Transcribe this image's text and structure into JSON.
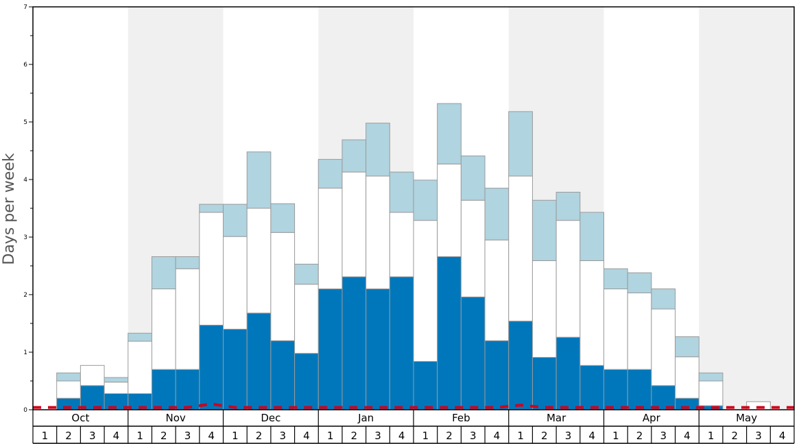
{
  "chart_data": {
    "type": "bar",
    "stacked": true,
    "ylabel": "Days per week",
    "ylim": [
      0,
      7
    ],
    "y_ticks": [
      "0",
      "1",
      "2",
      "3",
      "4",
      "5",
      "6",
      "7"
    ],
    "months": [
      "Oct",
      "Nov",
      "Dec",
      "Jan",
      "Feb",
      "Mar",
      "Apr",
      "May"
    ],
    "weeks": [
      "1",
      "2",
      "3",
      "4"
    ],
    "shaded_months": [
      "Nov",
      "Jan",
      "Mar",
      "May"
    ],
    "colors": {
      "bottom": "#0077bb",
      "middle": "#ffffff",
      "top": "#b0d4e0",
      "line": "#d0021b",
      "shade": "#f0f0f0",
      "bar_stroke": "#9a9a9a"
    },
    "series": [
      {
        "values": [
          0,
          0.2,
          0.42,
          0.28,
          0.28,
          0.7,
          0.7,
          1.47,
          1.4,
          1.68,
          1.2,
          0.98,
          2.1,
          2.31,
          2.1,
          2.31,
          0.84,
          2.66,
          1.96,
          1.2,
          1.54,
          0.91,
          1.26,
          0.77,
          0.7,
          0.7,
          0.42,
          0.2,
          0.07,
          0,
          0,
          0
        ]
      },
      {
        "values": [
          0,
          0.3,
          0.35,
          0.2,
          0.91,
          1.4,
          1.75,
          1.96,
          1.61,
          1.82,
          1.88,
          1.2,
          1.75,
          1.82,
          1.96,
          1.12,
          2.45,
          1.61,
          1.68,
          1.75,
          2.52,
          1.68,
          2.03,
          1.82,
          1.4,
          1.33,
          1.33,
          0.72,
          0.43,
          0,
          0.14,
          0
        ]
      },
      {
        "values": [
          0,
          0.14,
          0,
          0.08,
          0.14,
          0.56,
          0.21,
          0.14,
          0.56,
          0.98,
          0.5,
          0.35,
          0.5,
          0.56,
          0.92,
          0.7,
          0.7,
          1.05,
          0.77,
          0.9,
          1.12,
          1.05,
          0.49,
          0.84,
          0.35,
          0.35,
          0.35,
          0.35,
          0.14,
          0,
          0,
          0
        ]
      }
    ],
    "line_values": [
      0.04,
      0.04,
      0.04,
      0.04,
      0.04,
      0.04,
      0.04,
      0.1,
      0.04,
      0.04,
      0.04,
      0.04,
      0.04,
      0.04,
      0.04,
      0.04,
      0.04,
      0.04,
      0.04,
      0.04,
      0.08,
      0.04,
      0.04,
      0.04,
      0.04,
      0.04,
      0.04,
      0.04,
      0.04,
      0.04,
      0.04,
      0.04
    ]
  }
}
